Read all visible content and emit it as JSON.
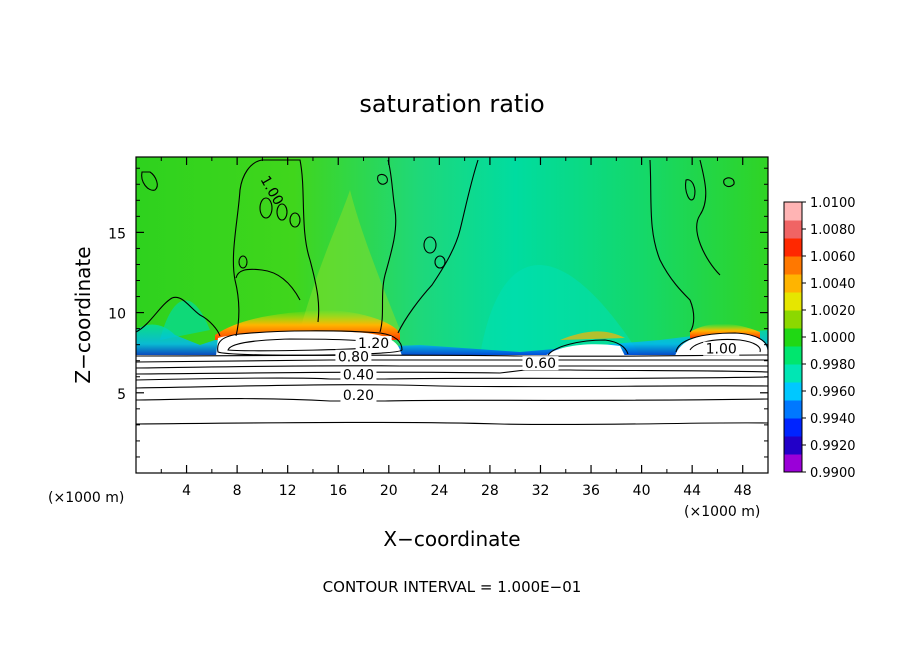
{
  "chart_data": {
    "type": "heatmap",
    "title": "saturation ratio",
    "xlabel": "X−coordinate",
    "ylabel": "Z−coordinate",
    "x_unit_label_left": "(×1000 m)",
    "x_unit_label_right": "(×1000 m)",
    "footer": "CONTOUR INTERVAL = 1.000E−01",
    "xlim": [
      0,
      50
    ],
    "ylim": [
      0,
      19.7
    ],
    "x_ticks": [
      4,
      8,
      12,
      16,
      20,
      24,
      28,
      32,
      36,
      40,
      44,
      48
    ],
    "y_ticks": [
      5,
      10,
      15
    ],
    "colorbar": {
      "min": 0.99,
      "max": 1.01,
      "labels": [
        "1.0100",
        "1.0080",
        "1.0060",
        "1.0040",
        "1.0020",
        "1.0000",
        "0.9980",
        "0.9960",
        "0.9940",
        "0.9920",
        "0.9900"
      ],
      "colors": [
        "#9a00d8",
        "#2200c8",
        "#0024ff",
        "#0078ff",
        "#00c8ff",
        "#00e6b4",
        "#00e66e",
        "#20d814",
        "#8cd800",
        "#e6e600",
        "#ffb400",
        "#ff7800",
        "#ff2800",
        "#f06464",
        "#ffb4b4"
      ]
    },
    "contour_labels": [
      {
        "text": "1.20",
        "x": 18.8,
        "z": 7.85
      },
      {
        "text": "0.80",
        "x": 17.2,
        "z": 7.0
      },
      {
        "text": "0.60",
        "x": 32.0,
        "z": 6.6
      },
      {
        "text": "0.40",
        "x": 17.6,
        "z": 5.9
      },
      {
        "text": "0.20",
        "x": 17.6,
        "z": 4.6
      },
      {
        "text": "1.00",
        "x": 46.3,
        "z": 7.5
      },
      {
        "text": "1.00",
        "x": 10.5,
        "z": 17.5
      }
    ],
    "field_description_values": {
      "boundary_layer_top_z": 7.5,
      "upper_field_mean": 1.0
    }
  }
}
